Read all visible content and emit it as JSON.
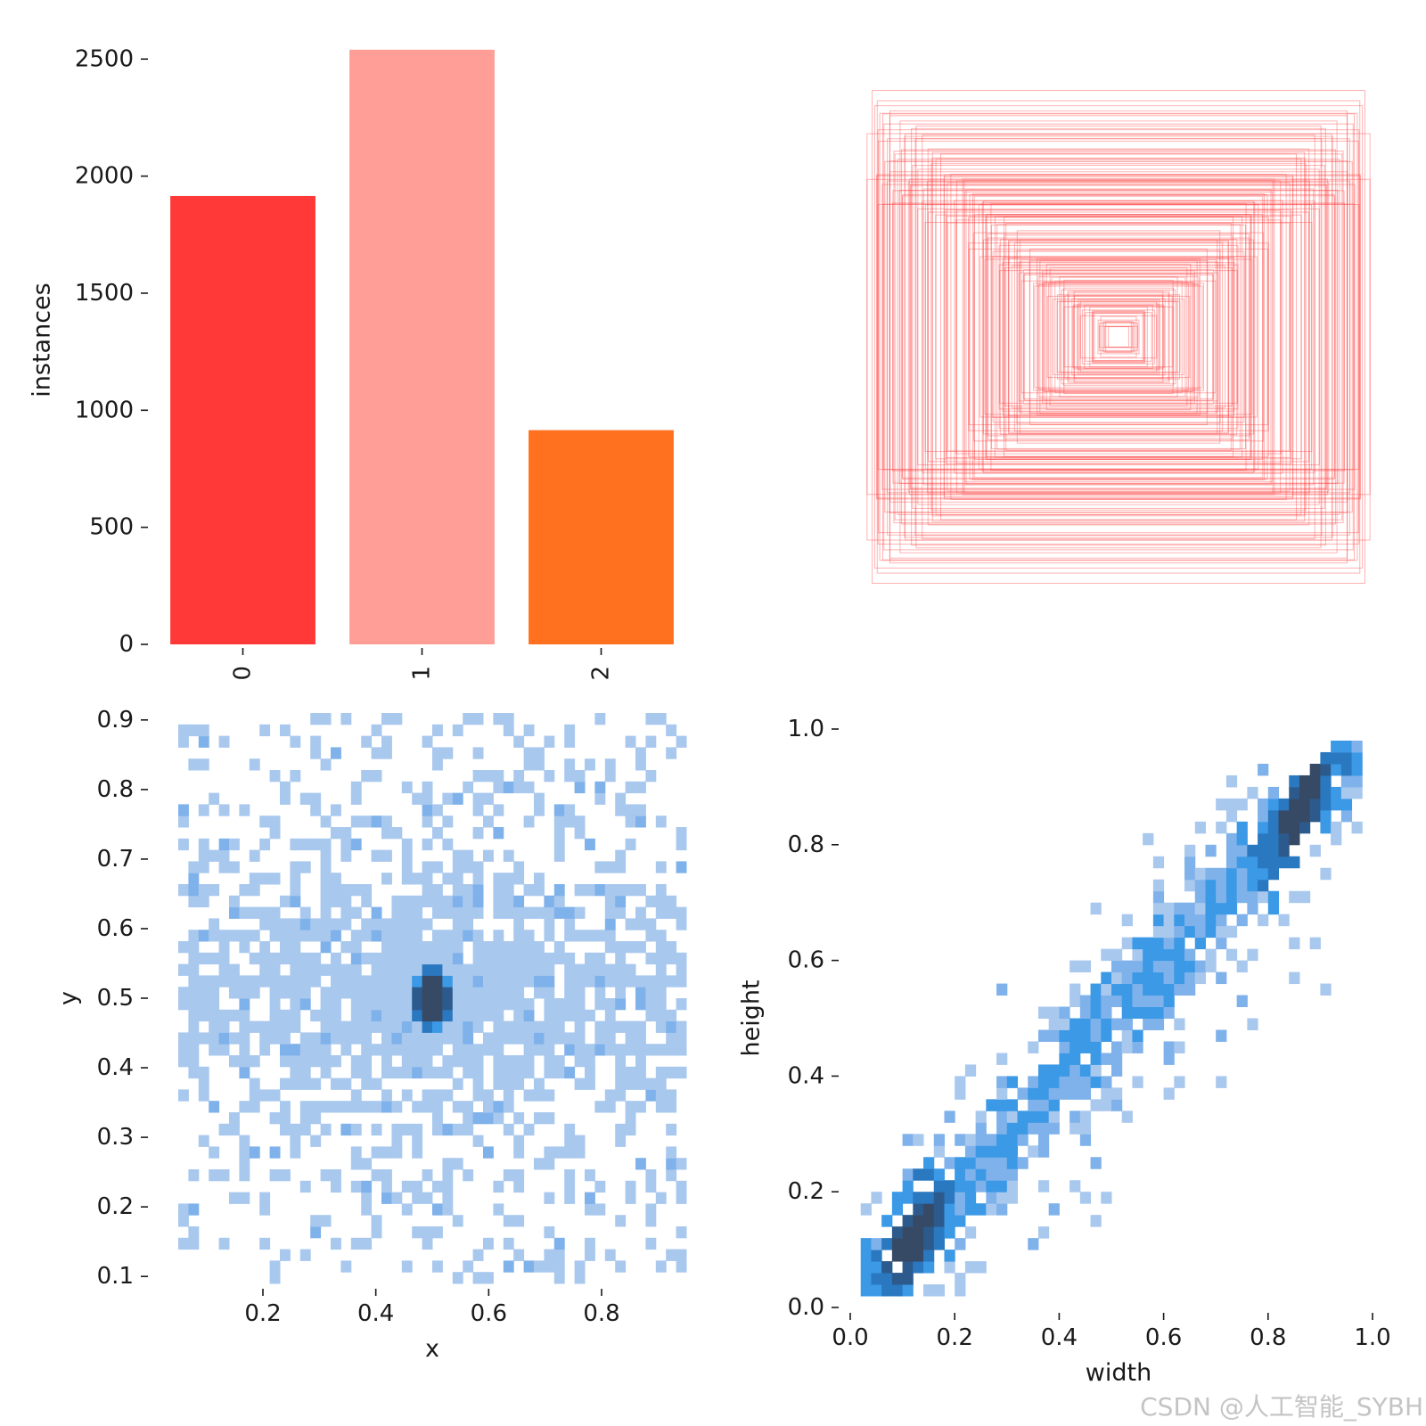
{
  "watermark": "CSDN @人工智能_SYBH",
  "chart_data": [
    {
      "type": "bar",
      "categories": [
        "0",
        "1",
        "2"
      ],
      "values": [
        1915,
        2540,
        915
      ],
      "colors": [
        "#ff3838",
        "#ff9d97",
        "#ff701f"
      ],
      "ylabel": "instances",
      "xlabel": "",
      "ylim": [
        0,
        2600
      ],
      "yticks": [
        0,
        500,
        1000,
        1500,
        2000,
        2500
      ],
      "ytick_labels": [
        "0",
        "500",
        "1000",
        "1500",
        "2000",
        "2500"
      ],
      "grid": false
    },
    {
      "type": "box-overlay",
      "color": "#ff3838",
      "box_count_drawn": 180,
      "axes_visible": false,
      "sizes": [
        [
          0.97,
          0.97
        ],
        [
          0.95,
          0.93
        ],
        [
          0.96,
          0.91
        ],
        [
          0.94,
          0.88
        ],
        [
          0.99,
          0.8
        ],
        [
          0.99,
          0.62
        ],
        [
          0.93,
          0.6
        ],
        [
          0.9,
          0.89
        ],
        [
          0.91,
          0.78
        ],
        [
          0.88,
          0.72
        ],
        [
          0.86,
          0.85
        ],
        [
          0.84,
          0.8
        ],
        [
          0.8,
          0.78
        ],
        [
          0.75,
          0.74
        ],
        [
          0.7,
          0.72
        ],
        [
          0.66,
          0.64
        ],
        [
          0.6,
          0.58
        ],
        [
          0.55,
          0.52
        ],
        [
          0.5,
          0.44
        ],
        [
          0.45,
          0.4
        ],
        [
          0.4,
          0.34
        ],
        [
          0.35,
          0.3
        ],
        [
          0.3,
          0.26
        ],
        [
          0.25,
          0.22
        ],
        [
          0.2,
          0.18
        ],
        [
          0.15,
          0.14
        ],
        [
          0.1,
          0.1
        ],
        [
          0.07,
          0.08
        ],
        [
          0.05,
          0.06
        ],
        [
          0.04,
          0.04
        ],
        [
          0.72,
          0.48
        ],
        [
          0.76,
          0.52
        ],
        [
          0.64,
          0.46
        ],
        [
          0.85,
          0.56
        ],
        [
          0.82,
          0.6
        ],
        [
          0.9,
          0.65
        ],
        [
          0.92,
          0.69
        ],
        [
          0.87,
          0.7
        ],
        [
          0.79,
          0.66
        ],
        [
          0.68,
          0.5
        ],
        [
          0.57,
          0.41
        ],
        [
          0.47,
          0.36
        ],
        [
          0.42,
          0.28
        ],
        [
          0.37,
          0.25
        ],
        [
          0.33,
          0.2
        ],
        [
          0.28,
          0.16
        ],
        [
          0.23,
          0.14
        ],
        [
          0.18,
          0.12
        ]
      ]
    },
    {
      "type": "heatmap",
      "xlabel": "x",
      "ylabel": "y",
      "xlim": [
        0.05,
        0.95
      ],
      "ylim": [
        0.09,
        0.91
      ],
      "xticks": [
        0.2,
        0.4,
        0.6,
        0.8
      ],
      "xtick_labels": [
        "0.2",
        "0.4",
        "0.6",
        "0.8"
      ],
      "yticks": [
        0.1,
        0.2,
        0.3,
        0.4,
        0.5,
        0.6,
        0.7,
        0.8,
        0.9
      ],
      "ytick_labels": [
        "0.1",
        "0.2",
        "0.3",
        "0.4",
        "0.5",
        "0.6",
        "0.7",
        "0.8",
        "0.9"
      ],
      "bins": 50,
      "hot_spot": [
        0.5,
        0.5
      ],
      "colormap": [
        "#a9c8ee",
        "#7fb2ea",
        "#3b99e6",
        "#2a78c0",
        "#2d5a8c",
        "#364a66"
      ]
    },
    {
      "type": "heatmap",
      "xlabel": "width",
      "ylabel": "height",
      "xlim": [
        0.0,
        1.0
      ],
      "ylim": [
        0.0,
        1.0
      ],
      "xticks": [
        0.0,
        0.2,
        0.4,
        0.6,
        0.8,
        1.0
      ],
      "xtick_labels": [
        "0.0",
        "0.2",
        "0.4",
        "0.6",
        "0.8",
        "1.0"
      ],
      "yticks": [
        0.0,
        0.2,
        0.4,
        0.6,
        0.8,
        1.0
      ],
      "ytick_labels": [
        "0.0",
        "0.2",
        "0.4",
        "0.6",
        "0.8",
        "1.0"
      ],
      "bins": 50,
      "trend": "height≈width",
      "colormap": [
        "#a9c8ee",
        "#7fb2ea",
        "#3b99e6",
        "#2a78c0",
        "#2d5a8c",
        "#364a66"
      ]
    }
  ]
}
